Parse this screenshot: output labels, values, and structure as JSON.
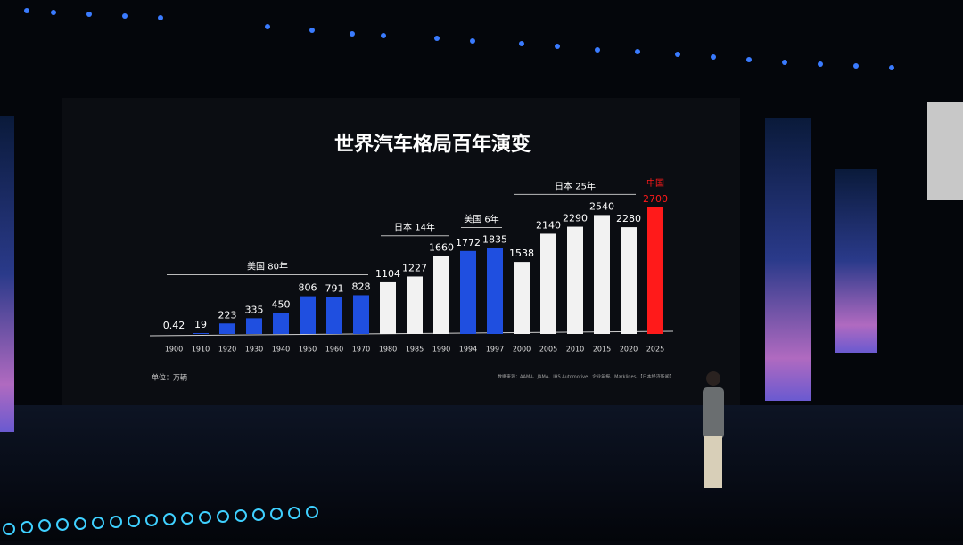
{
  "chart_data": {
    "type": "bar",
    "title": "世界汽车格局百年演变",
    "unit_note": "单位：万辆",
    "source_note": "数据来源：AAMA、JAMA、IHS Automotive、企业年报、Marklines、【日本经济新闻】",
    "categories": [
      "1900",
      "1910",
      "1920",
      "1930",
      "1940",
      "1950",
      "1960",
      "1970",
      "1980",
      "1985",
      "1990",
      "1994",
      "1997",
      "2000",
      "2005",
      "2010",
      "2015",
      "2020",
      "2025"
    ],
    "values": [
      0.42,
      19,
      223,
      335,
      450,
      806,
      791,
      828,
      1104,
      1227,
      1660,
      1772,
      1835,
      1538,
      2140,
      2290,
      2540,
      2280,
      2700
    ],
    "colors": [
      "#1f4fe0",
      "#1f4fe0",
      "#1f4fe0",
      "#1f4fe0",
      "#1f4fe0",
      "#1f4fe0",
      "#1f4fe0",
      "#1f4fe0",
      "#f2f2f2",
      "#f2f2f2",
      "#f2f2f2",
      "#1f4fe0",
      "#1f4fe0",
      "#f2f2f2",
      "#f2f2f2",
      "#f2f2f2",
      "#f2f2f2",
      "#f2f2f2",
      "#ff1a1a"
    ],
    "label_colors": [
      "#ffffff",
      "#ffffff",
      "#ffffff",
      "#ffffff",
      "#ffffff",
      "#ffffff",
      "#ffffff",
      "#ffffff",
      "#ffffff",
      "#ffffff",
      "#ffffff",
      "#ffffff",
      "#ffffff",
      "#ffffff",
      "#ffffff",
      "#ffffff",
      "#ffffff",
      "#ffffff",
      "#ff1a1a"
    ],
    "groups": [
      {
        "label": "美国  80年",
        "start": "1900",
        "end": "1970",
        "color": "#ffffff"
      },
      {
        "label": "日本  14年",
        "start": "1980",
        "end": "1990",
        "color": "#ffffff"
      },
      {
        "label": "美国  6年",
        "start": "1994",
        "end": "1997",
        "color": "#ffffff"
      },
      {
        "label": "日本  25年",
        "start": "2000",
        "end": "2020",
        "color": "#ffffff"
      },
      {
        "label": "中国",
        "start": "2025",
        "end": "2025",
        "color": "#ff1a1a"
      }
    ]
  }
}
